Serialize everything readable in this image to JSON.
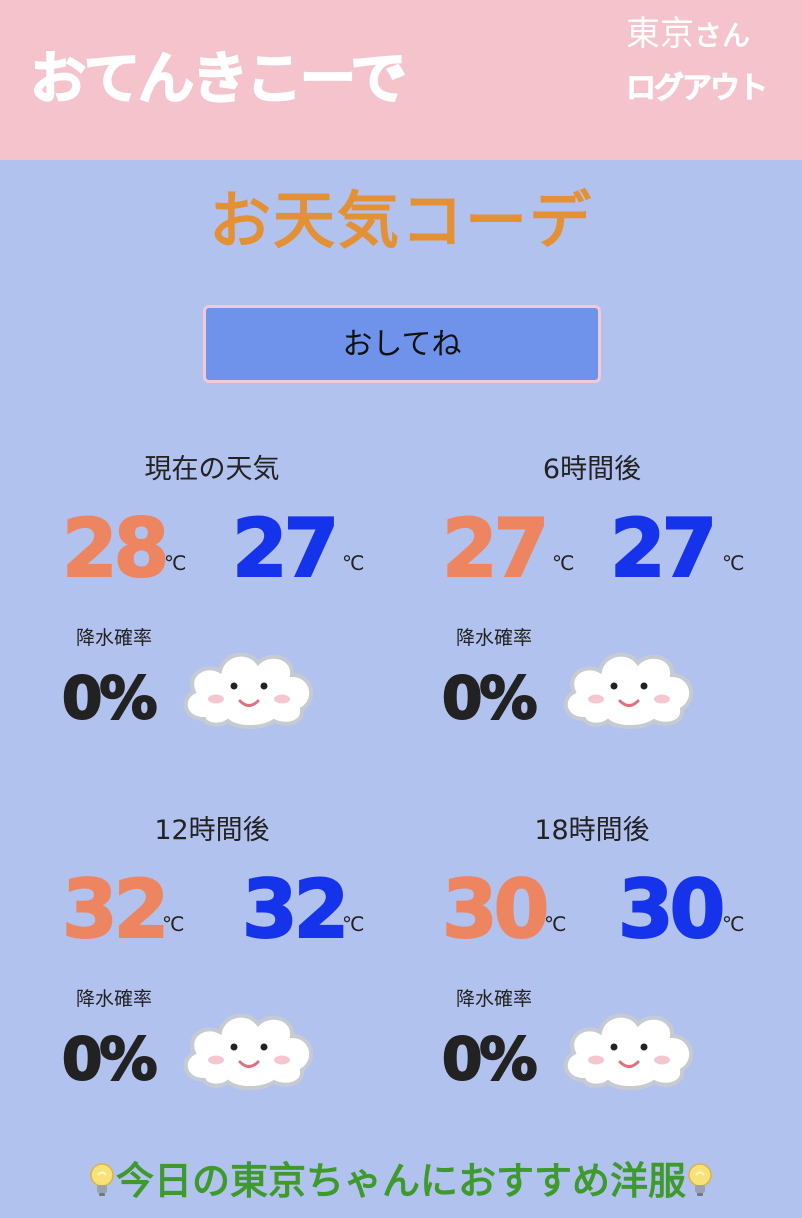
{
  "header": {
    "logo": "おてんきこーで",
    "user_name": "東京",
    "user_suffix": "さん",
    "logout": "ログアウト"
  },
  "page_title": "お天気コーデ",
  "ask_button": "おしてね",
  "unit": "℃",
  "rain_label": "降水確率",
  "forecasts": [
    {
      "title": "現在の天気",
      "high": "28",
      "low": "27",
      "rain": "0%",
      "icon": "smiling-cloud-icon"
    },
    {
      "title": "6時間後",
      "high": "27",
      "low": "27",
      "rain": "0%",
      "icon": "smiling-cloud-icon"
    },
    {
      "title": "12時間後",
      "high": "32",
      "low": "32",
      "rain": "0%",
      "icon": "smiling-cloud-icon"
    },
    {
      "title": "18時間後",
      "high": "30",
      "low": "30",
      "rain": "0%",
      "icon": "smiling-cloud-icon"
    }
  ],
  "footer": {
    "icon": "lightbulb-icon",
    "text": "今日の東京ちゃんにおすすめ洋服"
  },
  "colors": {
    "background": "#b2c2ee",
    "header": "#f4c3cc",
    "title": "#e49035",
    "high_temp": "#ee8561",
    "low_temp": "#1633ec",
    "button": "#6f93ea",
    "footer_text": "#3e9a2c"
  }
}
